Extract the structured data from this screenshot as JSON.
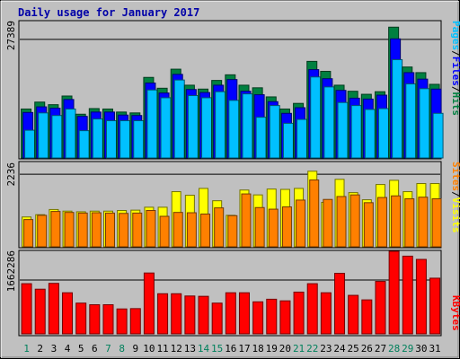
{
  "chart_data": [
    {
      "type": "bar",
      "title": "Daily usage for January 2017",
      "ylabel_value": "27389",
      "ylim": [
        0,
        31500
      ],
      "legend": [
        {
          "key": "pages",
          "label": "Pages",
          "color": "#00c0ff"
        },
        {
          "key": "sep1",
          "label": "/",
          "color": "#000000"
        },
        {
          "key": "files",
          "label": "Files",
          "color": "#0000ff"
        },
        {
          "key": "sep2",
          "label": "/",
          "color": "#000000"
        },
        {
          "key": "hits",
          "label": "Hits",
          "color": "#008040"
        }
      ],
      "categories": [
        "1",
        "2",
        "3",
        "4",
        "5",
        "6",
        "7",
        "8",
        "9",
        "10",
        "11",
        "12",
        "13",
        "14",
        "15",
        "16",
        "17",
        "18",
        "19",
        "20",
        "21",
        "22",
        "23",
        "24",
        "25",
        "26",
        "27",
        "28",
        "29",
        "30",
        "31"
      ],
      "series": [
        {
          "name": "Hits",
          "color": "#008040",
          "values": [
            11300,
            12900,
            12300,
            14300,
            10100,
            11400,
            11300,
            10600,
            10400,
            18600,
            16100,
            20500,
            16800,
            15900,
            17900,
            19200,
            16800,
            16200,
            14100,
            11300,
            12600,
            22300,
            20000,
            16800,
            15400,
            14700,
            15300,
            30200,
            21000,
            19700,
            17000
          ]
        },
        {
          "name": "Files",
          "color": "#0000ff",
          "values": [
            10500,
            11800,
            11500,
            13500,
            9600,
            10600,
            10600,
            9900,
            9800,
            17300,
            15000,
            19300,
            15800,
            15100,
            16800,
            18100,
            15400,
            14600,
            13000,
            10300,
            11600,
            20400,
            18300,
            15600,
            13800,
            13600,
            14500,
            27500,
            19700,
            18200,
            15900
          ]
        },
        {
          "name": "Pages",
          "color": "#00c0ff",
          "values": [
            6400,
            10400,
            9800,
            11300,
            6300,
            9000,
            8600,
            8600,
            8600,
            15700,
            13900,
            18000,
            14400,
            13900,
            15300,
            13300,
            14800,
            9400,
            12100,
            8000,
            8900,
            18700,
            16400,
            12800,
            12100,
            11200,
            11400,
            22700,
            17100,
            16000,
            10300
          ]
        }
      ]
    },
    {
      "type": "bar",
      "ylabel_value": "2236",
      "ylim": [
        0,
        2600
      ],
      "legend": [
        {
          "key": "sites",
          "label": "Sites",
          "color": "#ff8000"
        },
        {
          "key": "sep1",
          "label": "/",
          "color": "#000000"
        },
        {
          "key": "visits",
          "label": "Visits",
          "color": "#ffff00"
        }
      ],
      "categories": [
        "1",
        "2",
        "3",
        "4",
        "5",
        "6",
        "7",
        "8",
        "9",
        "10",
        "11",
        "12",
        "13",
        "14",
        "15",
        "16",
        "17",
        "18",
        "19",
        "20",
        "21",
        "22",
        "23",
        "24",
        "25",
        "26",
        "27",
        "28",
        "29",
        "30",
        "31"
      ],
      "series": [
        {
          "name": "Visits",
          "color": "#ffff00",
          "values": [
            920,
            990,
            1150,
            1100,
            1080,
            1100,
            1100,
            1120,
            1130,
            1220,
            1220,
            1700,
            1590,
            1800,
            1420,
            970,
            1750,
            1600,
            1780,
            1770,
            1800,
            2330,
            1370,
            2080,
            1670,
            1450,
            1920,
            2050,
            1700,
            1950,
            1950
          ]
        },
        {
          "name": "Sites",
          "color": "#ff8000",
          "values": [
            840,
            970,
            1090,
            1060,
            1040,
            1050,
            1040,
            1030,
            1040,
            1120,
            940,
            1060,
            1050,
            1010,
            1200,
            960,
            1630,
            1210,
            1160,
            1230,
            1440,
            2060,
            1460,
            1550,
            1600,
            1360,
            1520,
            1570,
            1480,
            1530,
            1480
          ]
        }
      ]
    },
    {
      "type": "bar",
      "ylabel_value": "1662286",
      "ylim": [
        0,
        2550000
      ],
      "legend": [
        {
          "key": "kbytes",
          "label": "KBytes",
          "color": "#ff0000"
        }
      ],
      "categories": [
        "1",
        "2",
        "3",
        "4",
        "5",
        "6",
        "7",
        "8",
        "9",
        "10",
        "11",
        "12",
        "13",
        "14",
        "15",
        "16",
        "17",
        "18",
        "19",
        "20",
        "21",
        "22",
        "23",
        "24",
        "25",
        "26",
        "27",
        "28",
        "29",
        "30",
        "31"
      ],
      "series": [
        {
          "name": "KBytes",
          "color": "#ff0000",
          "values": [
            1550000,
            1380000,
            1560000,
            1270000,
            950000,
            900000,
            900000,
            770000,
            780000,
            1880000,
            1240000,
            1240000,
            1170000,
            1160000,
            950000,
            1270000,
            1270000,
            990000,
            1070000,
            1020000,
            1290000,
            1550000,
            1270000,
            1870000,
            1190000,
            1050000,
            1620000,
            2550000,
            2400000,
            2300000,
            1720000
          ]
        }
      ]
    }
  ],
  "day_colors": {
    "weekday": "#000000",
    "weekend": "#00805c"
  },
  "weekend_days": [
    "1",
    "7",
    "8",
    "14",
    "15",
    "21",
    "22",
    "28",
    "29"
  ]
}
